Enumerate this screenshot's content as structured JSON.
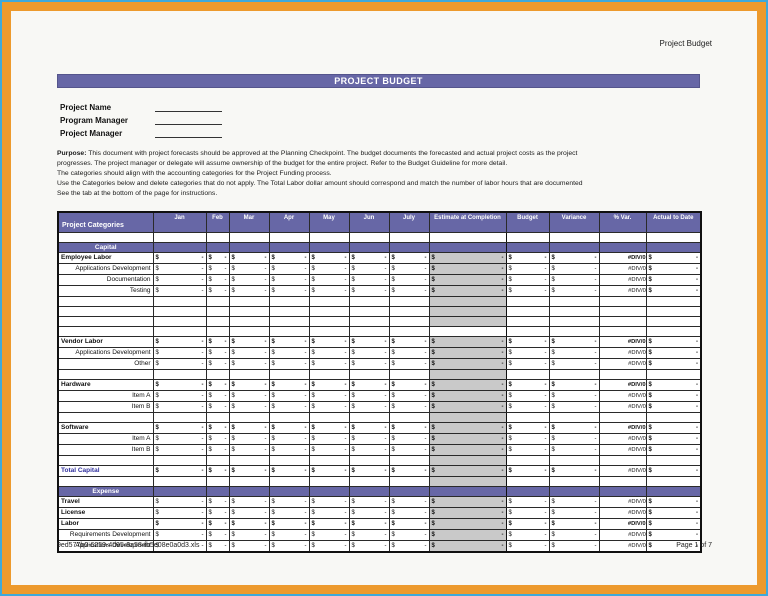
{
  "header": {
    "doc_label": "Project Budget"
  },
  "title_bar": {
    "text": "PROJECT BUDGET"
  },
  "fields": [
    {
      "label": "Project Name"
    },
    {
      "label": "Program Manager"
    },
    {
      "label": "Project Manager"
    }
  ],
  "purpose": {
    "lead": "Purpose:",
    "lines": [
      "This document with project forecasts should be approved at the Planning Checkpoint. The budget documents the forecasted and actual project costs as the project",
      "progresses. The project manager or delegate will assume ownership of the budget for the entire project. Refer to the Budget Guideline for more detail.",
      "The categories should align with the accounting categories for the Project Funding process.",
      "Use the Categories below and delete categories that do not apply.  The Total Labor dollar amount should correspond and match the number of labor hours that are documented",
      "See the  tab at the bottom of the page for instructions."
    ]
  },
  "table": {
    "columns": [
      "Project Categories",
      "Jan",
      "Feb",
      "Mar",
      "Apr",
      "May",
      "Jun",
      "July",
      "Estimate at Completion",
      "Budget",
      "Variance",
      "% Var.",
      "Actual to Date"
    ],
    "cell": {
      "currency": "$",
      "dash": "-",
      "error": "#DIV/0!"
    },
    "rows": [
      {
        "type": "blank",
        "thin": true,
        "eac": false
      },
      {
        "type": "section",
        "label": "Capital"
      },
      {
        "type": "data",
        "label": "Employee Labor",
        "variant": "main"
      },
      {
        "type": "data",
        "label": "Applications Development",
        "variant": "sub"
      },
      {
        "type": "data",
        "label": "Documentation",
        "variant": "sub"
      },
      {
        "type": "data",
        "label": "Testing",
        "variant": "sub"
      },
      {
        "type": "blank"
      },
      {
        "type": "blank"
      },
      {
        "type": "blank"
      },
      {
        "type": "blank",
        "eac": false
      },
      {
        "type": "data",
        "label": "Vendor Labor",
        "variant": "main"
      },
      {
        "type": "data",
        "label": "Applications Development",
        "variant": "sub"
      },
      {
        "type": "data",
        "label": "Other",
        "variant": "sub"
      },
      {
        "type": "blank"
      },
      {
        "type": "data",
        "label": "Hardware",
        "variant": "main"
      },
      {
        "type": "data",
        "label": "Item A",
        "variant": "sub"
      },
      {
        "type": "data",
        "label": "Item B",
        "variant": "sub"
      },
      {
        "type": "blank"
      },
      {
        "type": "data",
        "label": "Software",
        "variant": "main"
      },
      {
        "type": "data",
        "label": "Item A",
        "variant": "sub"
      },
      {
        "type": "data",
        "label": "Item B",
        "variant": "sub"
      },
      {
        "type": "blank"
      },
      {
        "type": "data",
        "label": "Total Capital",
        "variant": "total"
      },
      {
        "type": "blank"
      },
      {
        "type": "section",
        "label": "Expense"
      },
      {
        "type": "data",
        "label": "Travel",
        "variant": "label-bold"
      },
      {
        "type": "data",
        "label": "License",
        "variant": "label-bold"
      },
      {
        "type": "data",
        "label": "Labor",
        "variant": "main"
      },
      {
        "type": "data",
        "label": "Requirements Development",
        "variant": "sub"
      },
      {
        "type": "data",
        "label": "Applications Development",
        "variant": "sub"
      }
    ]
  },
  "footer": {
    "filename": "9ed577b0-6259-4d95-8a58-fb5e08e0a0d3.xls",
    "page": "Page 1 of 7"
  },
  "colors": {
    "accent_purple": "#6767a6",
    "frame_orange": "#ed9a2d",
    "frame_blue": "#3ea9db",
    "eac_gray": "#c9c9c9",
    "total_blue": "#2f2f9d"
  }
}
